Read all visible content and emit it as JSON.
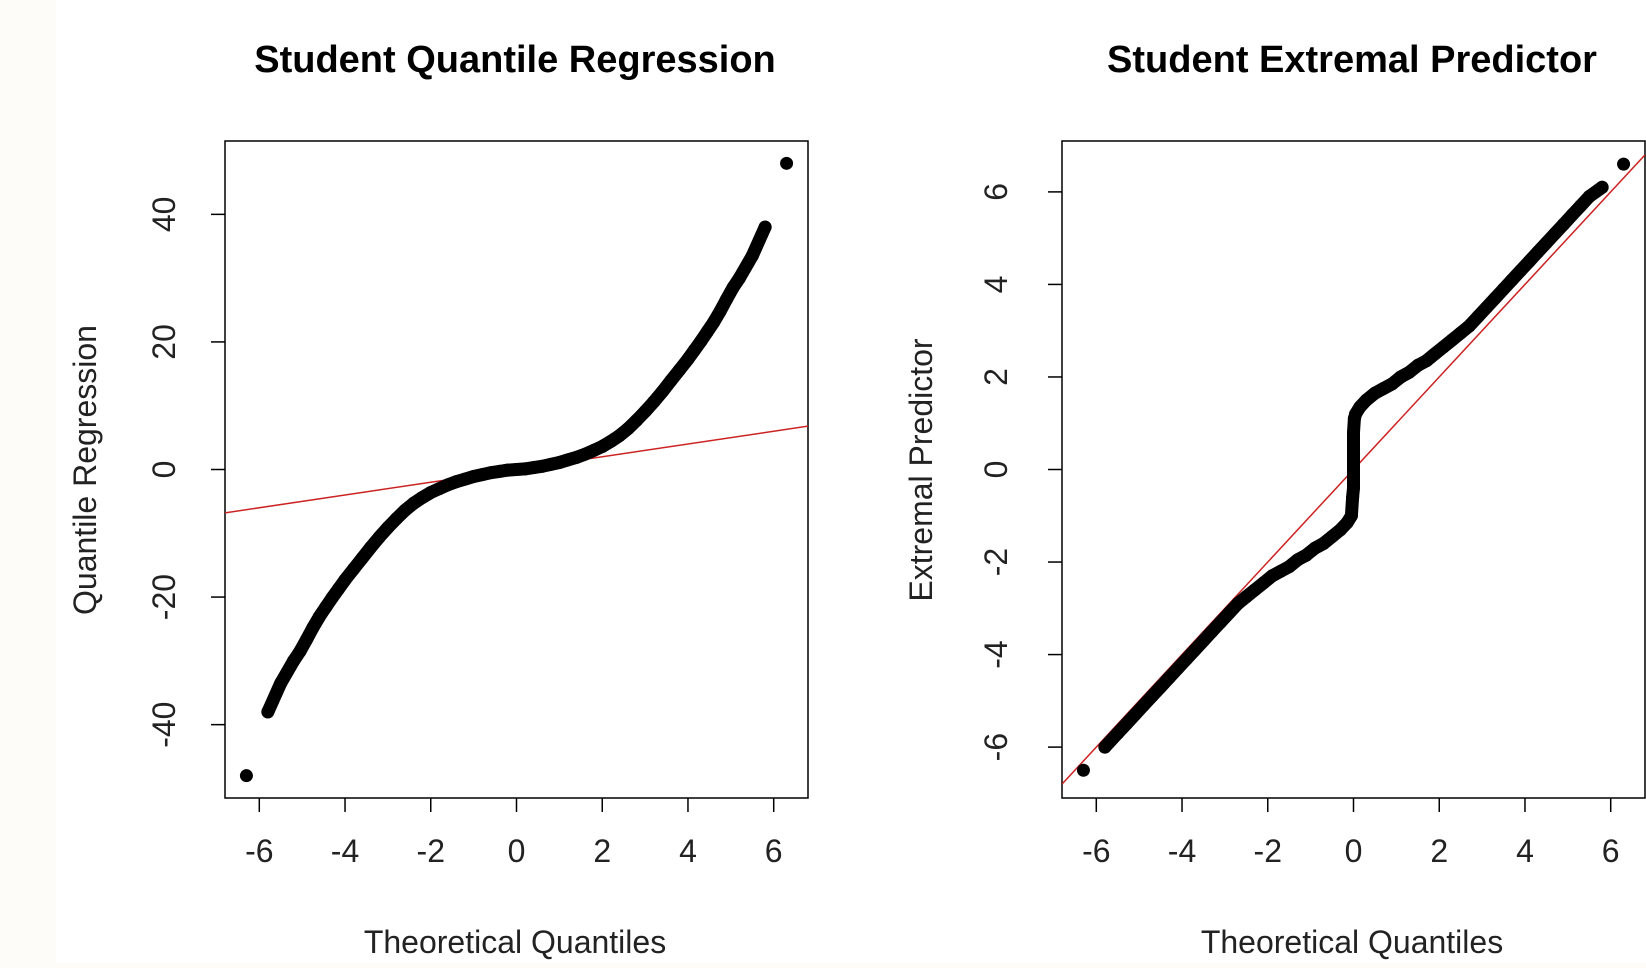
{
  "colors": {
    "background": "#fdfcf8",
    "panel": "#ffffff",
    "points": "#000000",
    "reference_line": "#cc2222",
    "axis": "#000000"
  },
  "chart_data": [
    {
      "type": "scatter",
      "subtype": "qq-plot",
      "title": "Student Quantile Regression",
      "xlabel": "Theoretical Quantiles",
      "ylabel": "Quantile Regression",
      "xlim": [
        -6.8,
        6.8
      ],
      "ylim": [
        -51.5,
        51.5
      ],
      "xticks": [
        -6,
        -4,
        -2,
        0,
        2,
        4,
        6
      ],
      "yticks": [
        -40,
        -20,
        0,
        20,
        40
      ],
      "reference_line": {
        "intercept": 0,
        "slope": 1.0
      },
      "points": {
        "x": [
          -6.3,
          -5.8,
          -5.5,
          -5.2,
          -5.05,
          -4.9,
          -4.75,
          -4.6,
          -4.45,
          -4.3,
          -4.15,
          -4.0,
          -3.8,
          -3.6,
          -3.4,
          -3.2,
          -3.0,
          -2.8,
          -2.6,
          -2.4,
          -2.2,
          -2.0,
          -1.8,
          -1.6,
          -1.4,
          -1.2,
          -1.0,
          -0.8,
          -0.6,
          -0.4,
          -0.2,
          0.0,
          0.2,
          0.4,
          0.6,
          0.8,
          1.0,
          1.2,
          1.4,
          1.6,
          1.8,
          2.0,
          2.2,
          2.4,
          2.6,
          2.8,
          3.0,
          3.2,
          3.4,
          3.6,
          3.8,
          4.0,
          4.15,
          4.3,
          4.45,
          4.6,
          4.75,
          4.9,
          5.05,
          5.2,
          5.5,
          5.8,
          6.3
        ],
        "y": [
          -48.0,
          -38.0,
          -33.5,
          -30.0,
          -28.5,
          -26.7,
          -24.8,
          -23.1,
          -21.6,
          -20.1,
          -18.7,
          -17.3,
          -15.6,
          -13.9,
          -12.2,
          -10.6,
          -9.1,
          -7.7,
          -6.4,
          -5.3,
          -4.4,
          -3.6,
          -3.0,
          -2.4,
          -1.9,
          -1.5,
          -1.1,
          -0.8,
          -0.5,
          -0.3,
          -0.1,
          0.0,
          0.1,
          0.3,
          0.5,
          0.8,
          1.1,
          1.5,
          1.9,
          2.4,
          3.0,
          3.6,
          4.4,
          5.3,
          6.4,
          7.7,
          9.1,
          10.6,
          12.2,
          13.9,
          15.6,
          17.3,
          18.7,
          20.1,
          21.6,
          23.1,
          24.8,
          26.7,
          28.5,
          30.0,
          33.5,
          38.0,
          48.0
        ]
      },
      "grid": false
    },
    {
      "type": "scatter",
      "subtype": "qq-plot",
      "title": "Student Extremal Predictor",
      "xlabel": "Theoretical Quantiles",
      "ylabel": "Extremal Predictor",
      "xlim": [
        -6.8,
        6.8
      ],
      "ylim": [
        -7.1,
        7.1
      ],
      "xticks": [
        -6,
        -4,
        -2,
        0,
        2,
        4,
        6
      ],
      "yticks": [
        -6,
        -4,
        -2,
        0,
        2,
        4,
        6
      ],
      "reference_line": {
        "intercept": 0,
        "slope": 1.0
      },
      "points": {
        "x": [
          -6.3,
          -5.8,
          -5.5,
          -5.3,
          -5.1,
          -4.9,
          -4.7,
          -4.5,
          -4.3,
          -4.1,
          -3.9,
          -3.7,
          -3.5,
          -3.3,
          -3.1,
          -2.9,
          -2.7,
          -2.5,
          -2.3,
          -2.1,
          -1.9,
          -1.7,
          -1.5,
          -1.3,
          -1.1,
          -0.9,
          -0.7,
          -0.5,
          -0.3,
          -0.15,
          -0.05,
          -0.02,
          0.0,
          0.0,
          0.0,
          0.0,
          0.0,
          0.02,
          0.05,
          0.15,
          0.3,
          0.5,
          0.7,
          0.9,
          1.1,
          1.3,
          1.5,
          1.7,
          1.9,
          2.1,
          2.3,
          2.5,
          2.7,
          2.9,
          3.1,
          3.3,
          3.5,
          3.7,
          3.9,
          4.1,
          4.3,
          4.5,
          4.7,
          4.9,
          5.1,
          5.3,
          5.5,
          5.8,
          6.3
        ],
        "y": [
          -6.5,
          -6.0,
          -5.7,
          -5.5,
          -5.3,
          -5.1,
          -4.9,
          -4.7,
          -4.5,
          -4.3,
          -4.1,
          -3.9,
          -3.7,
          -3.5,
          -3.3,
          -3.1,
          -2.9,
          -2.75,
          -2.6,
          -2.45,
          -2.3,
          -2.2,
          -2.1,
          -1.95,
          -1.85,
          -1.7,
          -1.6,
          -1.45,
          -1.3,
          -1.15,
          -1.0,
          -0.6,
          -0.4,
          -0.1,
          0.2,
          0.5,
          0.8,
          1.1,
          1.2,
          1.35,
          1.5,
          1.65,
          1.75,
          1.85,
          2.0,
          2.1,
          2.25,
          2.35,
          2.5,
          2.65,
          2.8,
          2.95,
          3.1,
          3.3,
          3.5,
          3.7,
          3.9,
          4.1,
          4.3,
          4.5,
          4.7,
          4.9,
          5.1,
          5.3,
          5.5,
          5.7,
          5.9,
          6.1,
          6.6
        ]
      },
      "grid": false
    }
  ]
}
